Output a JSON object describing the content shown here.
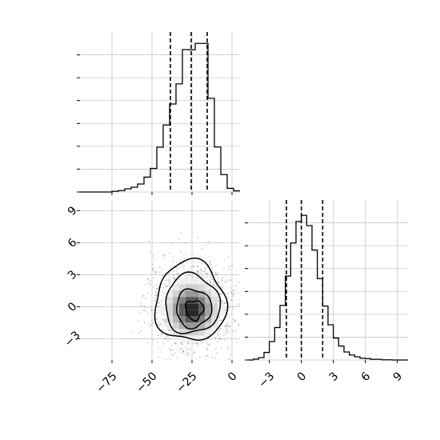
{
  "chart_data": [
    {
      "panel": "histogram-param-1",
      "type": "bar",
      "x_range": [
        -95,
        5
      ],
      "quantiles": [
        -38.5,
        -25.5,
        -15.5
      ],
      "bin_width": 4,
      "bin_starts": [
        -95,
        -91,
        -87,
        -83,
        -79,
        -75,
        -71,
        -67,
        -63,
        -59,
        -55,
        -51,
        -47,
        -43,
        -39,
        -35,
        -31,
        -27,
        -23,
        -19,
        -15,
        -11,
        -7,
        -3,
        1
      ],
      "values": [
        0,
        0,
        0,
        0,
        0,
        0.3,
        0.6,
        1.4,
        2.1,
        3.5,
        6.5,
        10.3,
        19.6,
        29.3,
        38.5,
        47.3,
        62.3,
        62.2,
        65,
        65,
        41,
        19.7,
        7.6,
        1.6,
        0.5
      ],
      "ylim": [
        0,
        70
      ]
    },
    {
      "panel": "scatter-2d",
      "type": "scatter",
      "x_range": [
        -95,
        5
      ],
      "y_range": [
        -5,
        10
      ],
      "x_ticks": [
        "−75",
        "−50",
        "−25",
        "0"
      ],
      "y_ticks": [
        "−3",
        "0",
        "3",
        "6",
        "9"
      ],
      "center": [
        -25,
        0
      ],
      "contour_levels": 4
    },
    {
      "panel": "histogram-param-2",
      "type": "bar",
      "x_range": [
        -5,
        10
      ],
      "quantiles": [
        -1.4,
        0,
        2
      ],
      "bin_width": 0.5,
      "bin_starts": [
        -5,
        -4.5,
        -4,
        -3.5,
        -3,
        -2.5,
        -2,
        -1.5,
        -1,
        -0.5,
        0,
        0.5,
        1,
        1.5,
        2,
        2.5,
        3,
        3.5,
        4,
        4.5,
        5,
        5.5,
        6,
        6.5,
        7,
        7.5,
        8,
        8.5,
        9,
        9.5
      ],
      "values": [
        0,
        0.4,
        1,
        3.3,
        8.1,
        14.2,
        23.9,
        36.7,
        51.2,
        60.6,
        63.3,
        58.8,
        48.1,
        35.6,
        23.6,
        15.4,
        9.6,
        6.1,
        3.5,
        2.2,
        1.4,
        0.8,
        0.6,
        0.3,
        0.3,
        0.1,
        0.1,
        0,
        0,
        0
      ],
      "x_ticks": [
        "−3",
        "0",
        "3",
        "6",
        "9"
      ],
      "ylim": [
        0,
        70
      ]
    }
  ]
}
